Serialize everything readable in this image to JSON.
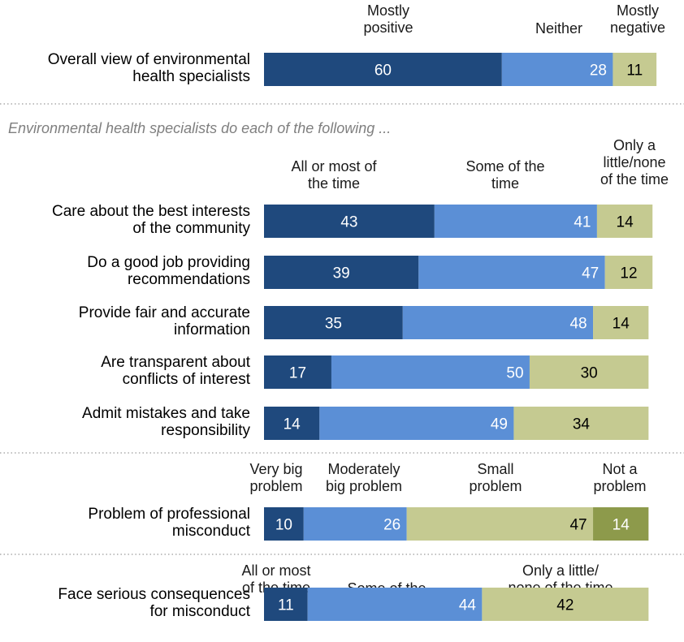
{
  "colors": {
    "dark_blue": "#1f497d",
    "mid_blue": "#5b8fd6",
    "khaki": "#c5ca91",
    "olive": "#8d9a4b",
    "divider": "#9a9a9a",
    "subtitle": "#7f7f7f"
  },
  "chart_data": {
    "type": "bar",
    "orientation": "horizontal-stacked",
    "subtitle": "Environmental health specialists do each of the following ...",
    "sections": [
      {
        "id": "overall",
        "legend": [
          "Mostly positive",
          "Neither",
          "Mostly negative"
        ],
        "rows": [
          {
            "label": "Overall view of environmental health specialists",
            "values": [
              60,
              28,
              11
            ]
          }
        ]
      },
      {
        "id": "behaviors",
        "legend": [
          "All or most of the time",
          "Some of the time",
          "Only a little/none of the time"
        ],
        "rows": [
          {
            "label": "Care about the best interests of the community",
            "values": [
              43,
              41,
              14
            ]
          },
          {
            "label": "Do a good job providing recommendations",
            "values": [
              39,
              47,
              12
            ]
          },
          {
            "label": "Provide fair and accurate information",
            "values": [
              35,
              48,
              14
            ]
          },
          {
            "label": "Are transparent about conflicts of interest",
            "values": [
              17,
              50,
              30
            ]
          },
          {
            "label": "Admit mistakes and take responsibility",
            "values": [
              14,
              49,
              34
            ]
          }
        ]
      },
      {
        "id": "misconduct",
        "legend": [
          "Very big problem",
          "Moderately big problem",
          "Small problem",
          "Not a problem"
        ],
        "rows": [
          {
            "label": "Problem of professional misconduct",
            "values": [
              10,
              26,
              47,
              14
            ]
          }
        ]
      },
      {
        "id": "consequences",
        "legend": [
          "All or most of the time",
          "Some of the time",
          "Only a little/ none of the time"
        ],
        "rows": [
          {
            "label": "Face serious consequences for misconduct",
            "values": [
              11,
              44,
              42
            ]
          }
        ]
      }
    ]
  }
}
